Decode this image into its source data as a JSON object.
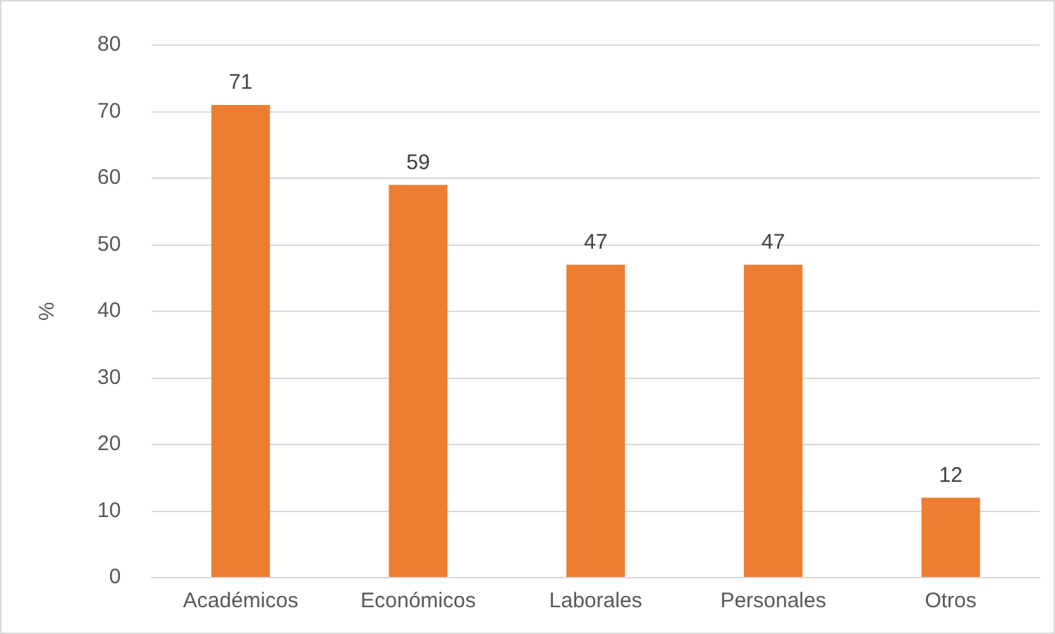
{
  "chart_data": {
    "type": "bar",
    "ylabel": "%",
    "categories": [
      "Académicos",
      "Económicos",
      "Laborales",
      "Personales",
      "Otros"
    ],
    "values": [
      71,
      59,
      47,
      47,
      12
    ],
    "color": "#ed7d31",
    "ylim": [
      0,
      80
    ],
    "yticks": [
      0,
      10,
      20,
      30,
      40,
      50,
      60,
      70,
      80
    ],
    "grid": "y",
    "data_labels": true
  }
}
